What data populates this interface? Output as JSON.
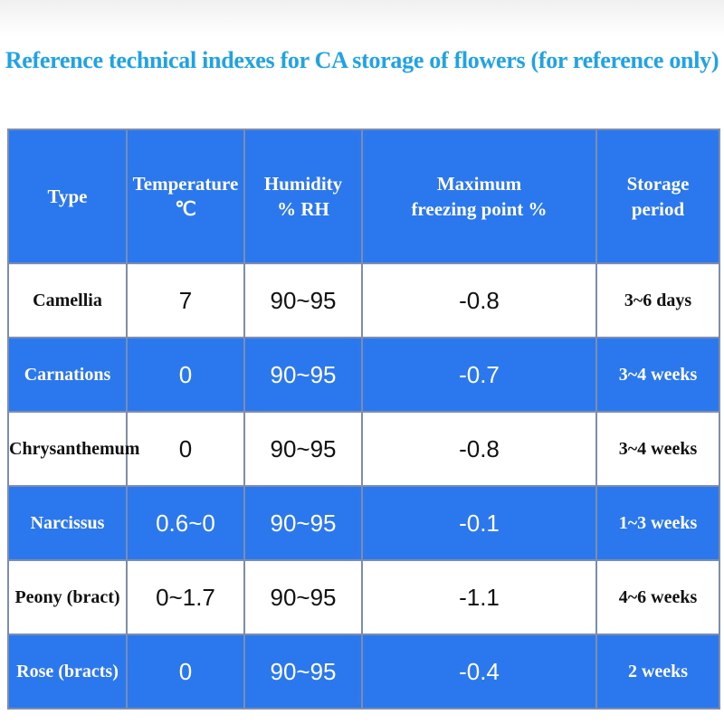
{
  "title": "Reference technical indexes for CA storage of flowers (for reference only)",
  "table": {
    "headers": {
      "type": "Type",
      "temperature": [
        "Temperature",
        "℃"
      ],
      "humidity": [
        "Humidity",
        "% RH"
      ],
      "freezing": [
        "Maximum",
        "freezing point %"
      ],
      "period": [
        "Storage",
        "period"
      ]
    },
    "rows": [
      {
        "type": "Camellia",
        "temperature": "7",
        "humidity": "90~95",
        "freezing": "-0.8",
        "period": "3~6 days"
      },
      {
        "type": "Carnations",
        "temperature": "0",
        "humidity": "90~95",
        "freezing": "-0.7",
        "period": "3~4 weeks"
      },
      {
        "type": "Chrysanthemum",
        "temperature": "0",
        "humidity": "90~95",
        "freezing": "-0.8",
        "period": "3~4 weeks"
      },
      {
        "type": "Narcissus",
        "temperature": "0.6~0",
        "humidity": "90~95",
        "freezing": "-0.1",
        "period": "1~3 weeks"
      },
      {
        "type": "Peony (bract)",
        "temperature": "0~1.7",
        "humidity": "90~95",
        "freezing": "-1.1",
        "period": "4~6 weeks"
      },
      {
        "type": "Rose (bracts)",
        "temperature": "0",
        "humidity": "90~95",
        "freezing": "-0.4",
        "period": "2 weeks"
      }
    ]
  },
  "colors": {
    "title": "#1ea3e6",
    "table_blue": "#2b78ee",
    "border": "#7d8db0"
  }
}
